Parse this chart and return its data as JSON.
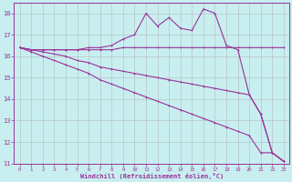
{
  "xlabel": "Windchill (Refroidissement éolien,°C)",
  "background_color": "#c8eef0",
  "grid_color": "#b0b0b0",
  "line_color": "#993399",
  "x": [
    0,
    1,
    2,
    3,
    4,
    5,
    6,
    7,
    8,
    9,
    10,
    11,
    12,
    13,
    14,
    15,
    16,
    17,
    18,
    19,
    20,
    21,
    22,
    23
  ],
  "line1": [
    16.4,
    16.3,
    16.3,
    16.3,
    16.3,
    16.3,
    16.3,
    16.3,
    16.3,
    16.4,
    16.4,
    16.4,
    16.4,
    16.4,
    16.4,
    16.4,
    16.4,
    16.4,
    16.4,
    16.4,
    16.4,
    16.4,
    16.4,
    16.4
  ],
  "line2": [
    16.4,
    16.3,
    16.3,
    16.3,
    16.3,
    16.3,
    16.4,
    16.4,
    16.5,
    16.8,
    17.0,
    18.0,
    17.4,
    17.8,
    17.3,
    17.2,
    18.2,
    18.0,
    16.5,
    16.3,
    14.2,
    13.3,
    11.5,
    11.1
  ],
  "line3": [
    16.4,
    16.3,
    16.2,
    16.1,
    16.0,
    15.8,
    15.7,
    15.5,
    15.4,
    15.3,
    15.2,
    15.1,
    15.0,
    14.9,
    14.8,
    14.7,
    14.6,
    14.5,
    14.4,
    14.3,
    14.2,
    13.3,
    11.5,
    11.1
  ],
  "line4": [
    16.4,
    16.2,
    16.0,
    15.8,
    15.6,
    15.4,
    15.2,
    14.9,
    14.7,
    14.5,
    14.3,
    14.1,
    13.9,
    13.7,
    13.5,
    13.3,
    13.1,
    12.9,
    12.7,
    12.5,
    12.3,
    11.5,
    11.5,
    11.1
  ],
  "ylim": [
    11,
    18.5
  ],
  "xlim": [
    -0.5,
    23.5
  ],
  "yticks": [
    11,
    12,
    13,
    14,
    15,
    16,
    17,
    18
  ],
  "xticks": [
    0,
    1,
    2,
    3,
    4,
    5,
    6,
    7,
    8,
    9,
    10,
    11,
    12,
    13,
    14,
    15,
    16,
    17,
    18,
    19,
    20,
    21,
    22,
    23
  ]
}
